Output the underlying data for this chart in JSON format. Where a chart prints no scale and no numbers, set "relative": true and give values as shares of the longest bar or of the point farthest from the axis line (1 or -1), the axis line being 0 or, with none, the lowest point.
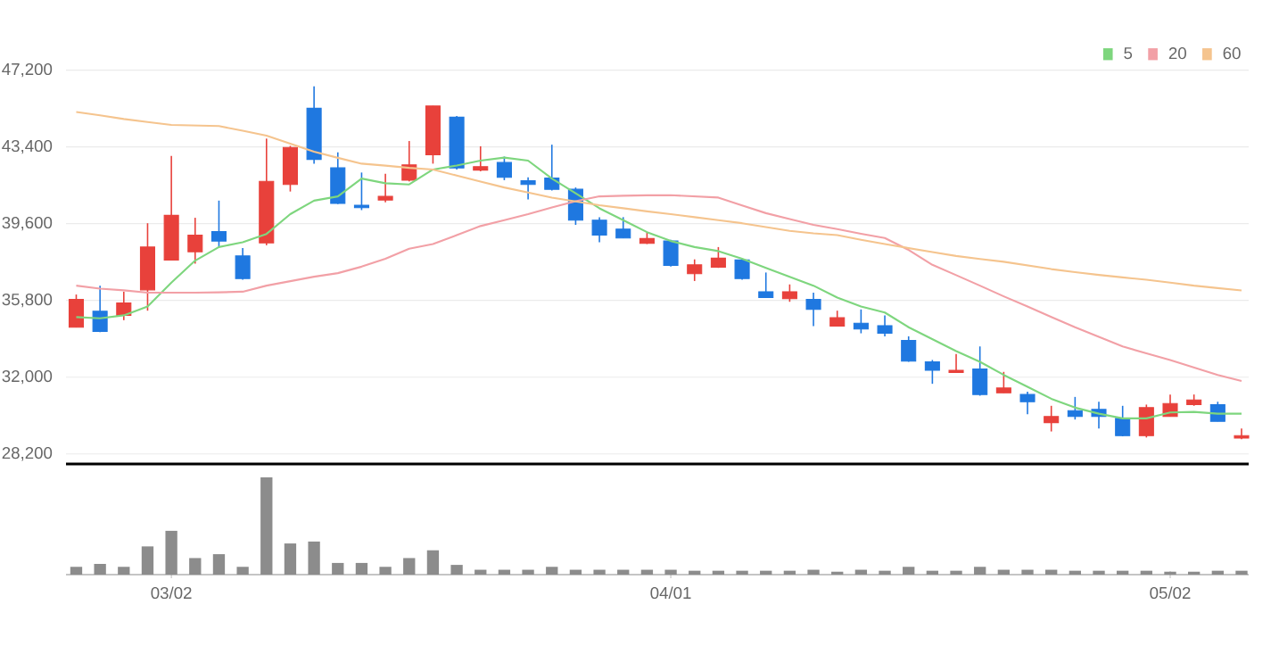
{
  "chart_data": [
    {
      "type": "candlestick",
      "categories": [
        null,
        null,
        null,
        null,
        null,
        null,
        null,
        null,
        null,
        null,
        null,
        null,
        null,
        null,
        null,
        null,
        null,
        null,
        null,
        null,
        null,
        null,
        null,
        null,
        null,
        null,
        null,
        null,
        null,
        null,
        null,
        null,
        null,
        null,
        null,
        null,
        null,
        null,
        null,
        null,
        null,
        null,
        null,
        null,
        null,
        null,
        null,
        null,
        null,
        null
      ],
      "tick_labels": "y",
      "ylim": [
        27700,
        47200
      ],
      "yticks": [
        {
          "value": 28200,
          "label": "28,200"
        },
        {
          "value": 32000,
          "label": "32,000"
        },
        {
          "value": 35800,
          "label": "35,800"
        },
        {
          "value": 39600,
          "label": "39,600"
        },
        {
          "value": 43400,
          "label": "43,400"
        },
        {
          "value": 47200,
          "label": "47,200"
        }
      ],
      "grid": "y",
      "legend": "top right",
      "ohlc": [
        [
          34470,
          36090,
          34470,
          35850
        ],
        [
          35260,
          36530,
          34230,
          34260
        ],
        [
          35060,
          36230,
          34820,
          35670
        ],
        [
          36320,
          39620,
          35290,
          38440
        ],
        [
          37800,
          42950,
          37770,
          40010
        ],
        [
          38210,
          39890,
          37620,
          39030
        ],
        [
          39210,
          40740,
          38440,
          38740
        ],
        [
          38000,
          38390,
          36820,
          36880
        ],
        [
          38650,
          43810,
          38530,
          41690
        ],
        [
          41540,
          43450,
          41190,
          43370
        ],
        [
          45310,
          46400,
          42570,
          42780
        ],
        [
          42360,
          43130,
          40570,
          40600
        ],
        [
          40510,
          42130,
          40270,
          40390
        ],
        [
          40770,
          42070,
          40660,
          40950
        ],
        [
          41750,
          43690,
          41690,
          42510
        ],
        [
          43010,
          45430,
          42570,
          45430
        ],
        [
          44870,
          44930,
          42280,
          42360
        ],
        [
          42250,
          43430,
          42190,
          42420
        ],
        [
          42630,
          42920,
          41750,
          41890
        ],
        [
          41720,
          41890,
          40800,
          41540
        ],
        [
          41860,
          43510,
          41240,
          41300
        ],
        [
          41300,
          41390,
          39540,
          39770
        ],
        [
          39770,
          39920,
          38680,
          39030
        ],
        [
          39330,
          39920,
          38890,
          38890
        ],
        [
          38620,
          39180,
          38590,
          38860
        ],
        [
          38740,
          38800,
          37470,
          37530
        ],
        [
          37120,
          37830,
          36760,
          37560
        ],
        [
          37440,
          38440,
          37410,
          37890
        ],
        [
          37800,
          37860,
          36820,
          36880
        ],
        [
          36230,
          37180,
          35940,
          35940
        ],
        [
          35880,
          36590,
          35730,
          36230
        ],
        [
          35850,
          36180,
          34530,
          35350
        ],
        [
          34530,
          35290,
          34530,
          34940
        ],
        [
          34670,
          35350,
          34170,
          34380
        ],
        [
          34550,
          35060,
          34020,
          34170
        ],
        [
          33820,
          34020,
          32760,
          32790
        ],
        [
          32760,
          32850,
          31670,
          32340
        ],
        [
          32230,
          33140,
          32230,
          32340
        ],
        [
          32400,
          33520,
          31080,
          31140
        ],
        [
          31220,
          32260,
          31220,
          31460
        ],
        [
          31140,
          31280,
          30160,
          30780
        ],
        [
          29750,
          30580,
          29310,
          30050
        ],
        [
          30340,
          31020,
          29900,
          30050
        ],
        [
          30400,
          30780,
          29460,
          30050
        ],
        [
          29960,
          30580,
          29070,
          29100
        ],
        [
          29100,
          30640,
          29010,
          30490
        ],
        [
          30050,
          31140,
          30050,
          30690
        ],
        [
          30640,
          31140,
          30580,
          30870
        ],
        [
          30640,
          30780,
          29810,
          29810
        ],
        [
          28980,
          29460,
          28930,
          29100
        ]
      ],
      "colors": [
        "#e8413b",
        "#1f78e0",
        "#e8413b",
        "#e8413b",
        "#e8413b",
        "#e8413b",
        "#1f78e0",
        "#1f78e0",
        "#e8413b",
        "#e8413b",
        "#1f78e0",
        "#1f78e0",
        "#1f78e0",
        "#e8413b",
        "#e8413b",
        "#e8413b",
        "#1f78e0",
        "#e8413b",
        "#1f78e0",
        "#1f78e0",
        "#1f78e0",
        "#1f78e0",
        "#1f78e0",
        "#1f78e0",
        "#e8413b",
        "#1f78e0",
        "#e8413b",
        "#e8413b",
        "#1f78e0",
        "#1f78e0",
        "#e8413b",
        "#1f78e0",
        "#e8413b",
        "#1f78e0",
        "#1f78e0",
        "#1f78e0",
        "#1f78e0",
        "#e8413b",
        "#1f78e0",
        "#e8413b",
        "#1f78e0",
        "#e8413b",
        "#1f78e0",
        "#1f78e0",
        "#1f78e0",
        "#e8413b",
        "#e8413b",
        "#e8413b",
        "#1f78e0",
        "#e8413b"
      ],
      "series": [
        {
          "name": "5",
          "type": "line",
          "color": "#7ed67e",
          "values": [
            34970,
            34910,
            35060,
            35500,
            36680,
            37770,
            38440,
            38680,
            39090,
            40070,
            40740,
            40950,
            41830,
            41600,
            41540,
            42280,
            42480,
            42720,
            42870,
            42720,
            41830,
            41100,
            40360,
            39770,
            39180,
            38740,
            38440,
            38240,
            37860,
            37410,
            36970,
            36530,
            35940,
            35500,
            35200,
            34470,
            33880,
            33290,
            32760,
            32110,
            31520,
            30930,
            30490,
            30190,
            29960,
            29960,
            30250,
            30280,
            30190,
            30190
          ]
        },
        {
          "name": "20",
          "type": "line",
          "color": "#f2a0a6",
          "values": [
            36530,
            36380,
            36300,
            36180,
            36180,
            36180,
            36200,
            36230,
            36530,
            36750,
            36970,
            37150,
            37470,
            37860,
            38360,
            38590,
            39030,
            39480,
            39770,
            40070,
            40400,
            40710,
            40950,
            40980,
            41000,
            41010,
            40950,
            40890,
            40500,
            40120,
            39830,
            39540,
            39330,
            39100,
            38890,
            38300,
            37560,
            37050,
            36530,
            36000,
            35500,
            34980,
            34470,
            34000,
            33520,
            33180,
            32850,
            32480,
            32110,
            31810
          ]
        },
        {
          "name": "60",
          "type": "line",
          "color": "#f5c48e",
          "values": [
            45130,
            44960,
            44780,
            44630,
            44490,
            44460,
            44430,
            44200,
            43960,
            43560,
            43160,
            42860,
            42570,
            42470,
            42360,
            42280,
            41980,
            41680,
            41390,
            41140,
            40890,
            40700,
            40510,
            40360,
            40210,
            40070,
            39920,
            39770,
            39620,
            39430,
            39240,
            39120,
            39030,
            38800,
            38590,
            38390,
            38190,
            38000,
            37850,
            37710,
            37530,
            37350,
            37200,
            37060,
            36940,
            36820,
            36680,
            36530,
            36410,
            36290
          ]
        }
      ]
    },
    {
      "type": "bar",
      "relative": true,
      "tick_labels": "x",
      "color": "#8c8c8c",
      "categories": [
        null,
        null,
        null,
        null,
        "03/02",
        null,
        null,
        null,
        null,
        null,
        null,
        null,
        null,
        null,
        null,
        null,
        null,
        null,
        null,
        null,
        null,
        null,
        null,
        null,
        null,
        "04/01",
        null,
        null,
        null,
        null,
        null,
        null,
        null,
        null,
        null,
        null,
        null,
        null,
        null,
        null,
        null,
        null,
        null,
        null,
        null,
        null,
        "05/02",
        null,
        null,
        null
      ],
      "values": [
        0.08,
        0.11,
        0.08,
        0.29,
        0.45,
        0.17,
        0.21,
        0.08,
        1,
        0.32,
        0.34,
        0.12,
        0.12,
        0.08,
        0.17,
        0.25,
        0.1,
        0.05,
        0.05,
        0.05,
        0.08,
        0.05,
        0.05,
        0.05,
        0.05,
        0.05,
        0.04,
        0.04,
        0.04,
        0.04,
        0.04,
        0.05,
        0.03,
        0.05,
        0.04,
        0.08,
        0.04,
        0.04,
        0.08,
        0.05,
        0.05,
        0.05,
        0.04,
        0.04,
        0.04,
        0.04,
        0.03,
        0.03,
        0.04,
        0.04
      ]
    }
  ]
}
